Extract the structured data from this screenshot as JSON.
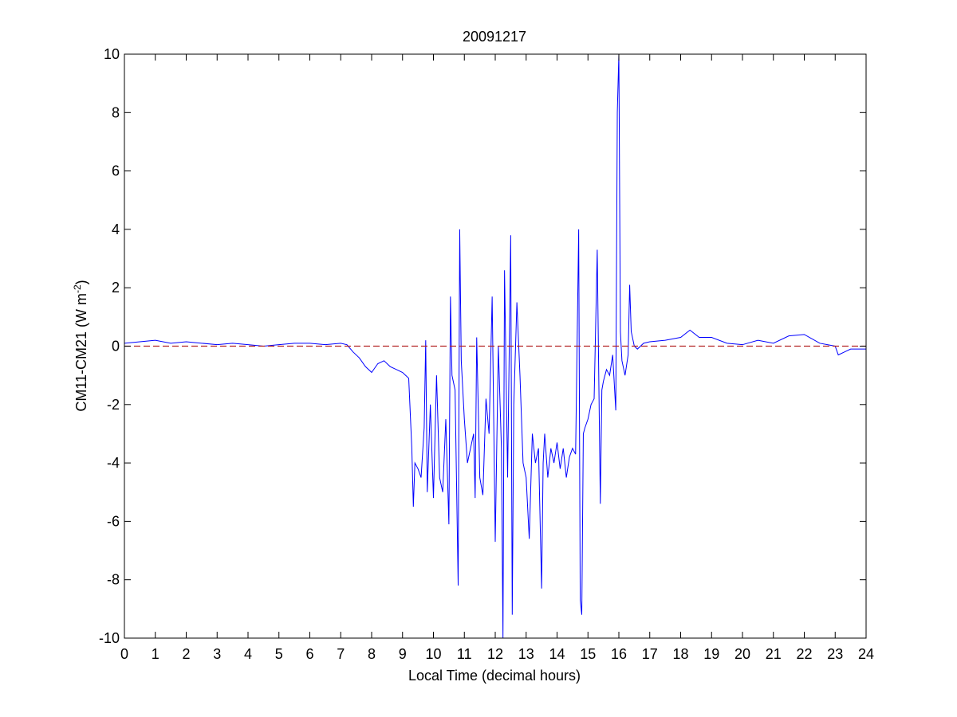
{
  "chart_data": {
    "type": "line",
    "title": "20091217",
    "xlabel": "Local Time (decimal hours)",
    "ylabel_main": "CM11-CM21 (W m",
    "ylabel_sup": "-2",
    "ylabel_close": ")",
    "xlim": [
      0,
      24
    ],
    "ylim": [
      -10,
      10
    ],
    "xticks": [
      0,
      1,
      2,
      3,
      4,
      5,
      6,
      7,
      8,
      9,
      10,
      11,
      12,
      13,
      14,
      15,
      16,
      17,
      18,
      19,
      20,
      21,
      22,
      23,
      24
    ],
    "yticks": [
      -10,
      -8,
      -6,
      -4,
      -2,
      0,
      2,
      4,
      6,
      8,
      10
    ],
    "grid": false,
    "series": [
      {
        "color": "#0000ff",
        "x": [
          0,
          0.5,
          1,
          1.5,
          2,
          2.5,
          3,
          3.5,
          4,
          4.5,
          5,
          5.5,
          6,
          6.5,
          7,
          7.2,
          7.4,
          7.6,
          7.8,
          8,
          8.2,
          8.4,
          8.6,
          8.8,
          9,
          9.2,
          9.3,
          9.35,
          9.4,
          9.5,
          9.6,
          9.7,
          9.75,
          9.8,
          9.9,
          10,
          10.1,
          10.2,
          10.3,
          10.4,
          10.5,
          10.55,
          10.6,
          10.7,
          10.8,
          10.85,
          10.9,
          11,
          11.1,
          11.2,
          11.3,
          11.35,
          11.4,
          11.5,
          11.6,
          11.7,
          11.8,
          11.9,
          12,
          12.1,
          12.2,
          12.25,
          12.3,
          12.4,
          12.5,
          12.55,
          12.6,
          12.7,
          12.8,
          12.9,
          13,
          13.1,
          13.2,
          13.3,
          13.4,
          13.5,
          13.55,
          13.6,
          13.7,
          13.8,
          13.9,
          14,
          14.1,
          14.2,
          14.3,
          14.4,
          14.5,
          14.6,
          14.7,
          14.75,
          14.8,
          14.85,
          14.9,
          15,
          15.1,
          15.2,
          15.3,
          15.4,
          15.45,
          15.5,
          15.6,
          15.7,
          15.8,
          15.9,
          15.95,
          16,
          16.05,
          16.1,
          16.2,
          16.3,
          16.35,
          16.4,
          16.5,
          16.6,
          16.8,
          17,
          17.5,
          18,
          18.3,
          18.6,
          19,
          19.5,
          20,
          20.5,
          21,
          21.5,
          22,
          22.5,
          23,
          23.1,
          23.3,
          23.5,
          24
        ],
        "y": [
          0.1,
          0.15,
          0.2,
          0.1,
          0.15,
          0.1,
          0.05,
          0.1,
          0.05,
          0.0,
          0.05,
          0.1,
          0.1,
          0.05,
          0.1,
          0.05,
          -0.2,
          -0.4,
          -0.7,
          -0.9,
          -0.6,
          -0.5,
          -0.7,
          -0.8,
          -0.9,
          -1.1,
          -3.5,
          -5.5,
          -4.0,
          -4.2,
          -4.5,
          -2.8,
          0.2,
          -5.0,
          -2.0,
          -5.2,
          -1.0,
          -4.5,
          -5.0,
          -2.5,
          -6.1,
          1.7,
          -1.0,
          -1.5,
          -8.2,
          4.0,
          -0.5,
          -2.5,
          -4.0,
          -3.5,
          -3.0,
          -5.2,
          0.3,
          -4.5,
          -5.1,
          -1.8,
          -3.0,
          1.7,
          -6.7,
          0.0,
          -3.5,
          -10.0,
          2.6,
          -4.5,
          3.8,
          -9.2,
          -2.0,
          1.5,
          -1.0,
          -4.0,
          -4.5,
          -6.6,
          -3.0,
          -4.0,
          -3.5,
          -8.3,
          -4.0,
          -3.0,
          -4.5,
          -3.5,
          -4.0,
          -3.3,
          -4.2,
          -3.5,
          -4.5,
          -3.8,
          -3.5,
          -3.7,
          4.0,
          -8.7,
          -9.2,
          -3.0,
          -2.8,
          -2.5,
          -2.0,
          -1.8,
          3.3,
          -5.4,
          -1.5,
          -1.2,
          -0.8,
          -1.0,
          -0.3,
          -2.2,
          8.0,
          10.0,
          0.5,
          -0.5,
          -1.0,
          -0.3,
          2.1,
          0.5,
          0.0,
          -0.1,
          0.1,
          0.15,
          0.2,
          0.3,
          0.55,
          0.3,
          0.3,
          0.1,
          0.05,
          0.2,
          0.1,
          0.35,
          0.4,
          0.1,
          0.0,
          -0.3,
          -0.2,
          -0.1,
          -0.1
        ]
      },
      {
        "color": "#b22222",
        "dashed": true,
        "x": [
          0,
          24
        ],
        "y": [
          0,
          0
        ]
      }
    ]
  }
}
